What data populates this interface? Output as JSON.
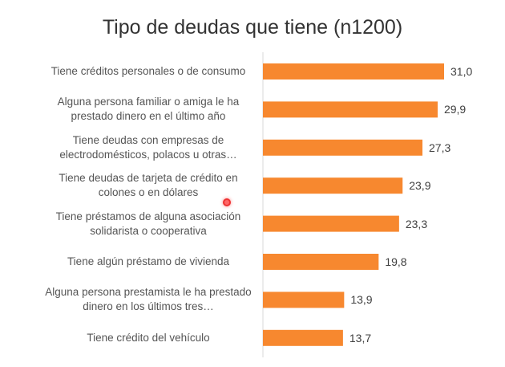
{
  "chart_data": {
    "type": "bar",
    "orientation": "horizontal",
    "title": "Tipo de deudas que tiene (n1200)",
    "categories": [
      "Tiene créditos personales o de consumo",
      "Alguna persona familiar o amiga le ha prestado dinero en el último año",
      "Tiene deudas con empresas de electrodomésticos, polacos u otras…",
      "Tiene deudas de tarjeta de crédito en colones o en dólares",
      "Tiene préstamos de alguna asociación solidarista o cooperativa",
      "Tiene algún préstamo de vivienda",
      "Alguna persona prestamista le ha prestado dinero en los últimos tres…",
      "Tiene crédito del vehículo"
    ],
    "values": [
      31.0,
      29.9,
      27.3,
      23.9,
      23.3,
      19.8,
      13.9,
      13.7
    ],
    "value_labels": [
      "31,0",
      "29,9",
      "27,3",
      "23,9",
      "23,3",
      "19,8",
      "13,9",
      "13,7"
    ],
    "xlabel": "",
    "ylabel": "",
    "xlim": [
      0,
      31
    ],
    "grid": false,
    "legend": "none",
    "bar_color": "#F7882F",
    "axis_color": "#d9d9d9"
  }
}
